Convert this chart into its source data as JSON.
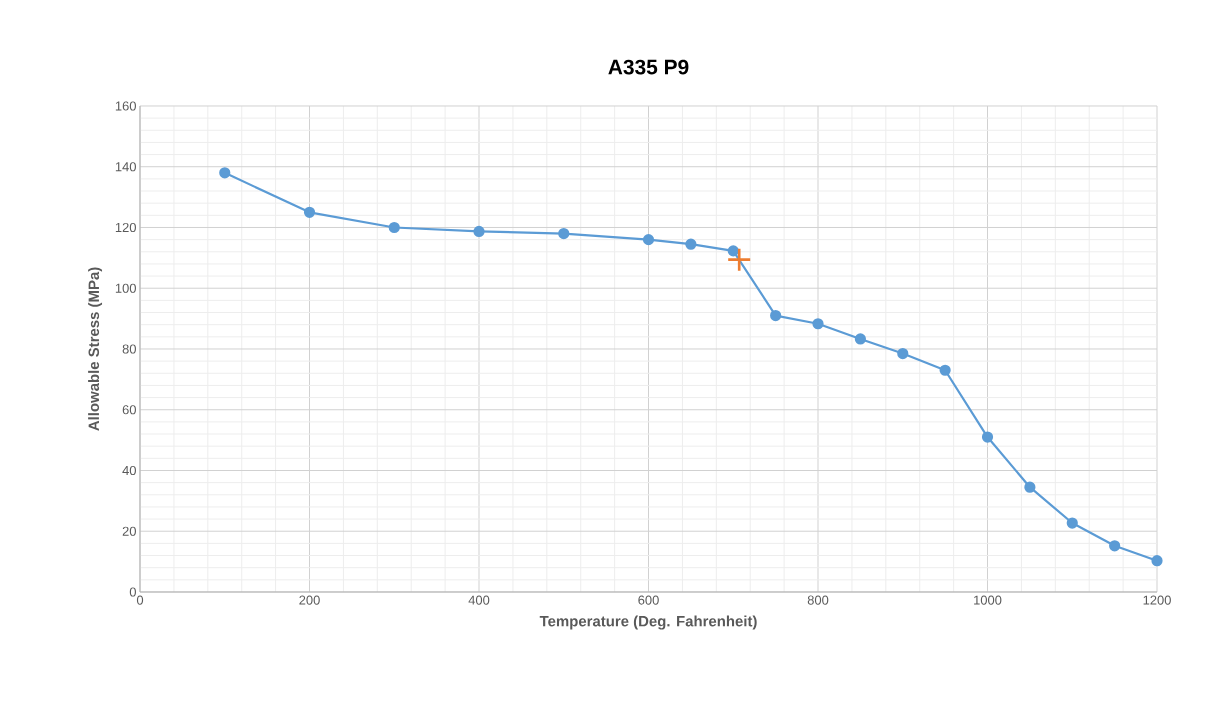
{
  "chart_data": {
    "type": "line",
    "title": "A335 P9",
    "xlabel": "Temperature (Deg. Fahrenheit)",
    "ylabel": "Allowable Stress (MPa)",
    "xlim": [
      0,
      1200
    ],
    "xticks": [
      0,
      200,
      400,
      600,
      800,
      1000,
      1200
    ],
    "ylim": [
      0,
      160
    ],
    "yticks": [
      0,
      20,
      40,
      60,
      80,
      100,
      120,
      140,
      160
    ],
    "grid": true,
    "series": [
      {
        "color": "#5b9bd5",
        "marker": "circle",
        "x": [
          100,
          200,
          300,
          400,
          500,
          600,
          650,
          700,
          750,
          800,
          850,
          900,
          950,
          1000,
          1050,
          1100,
          1150,
          1200
        ],
        "values": [
          138,
          125,
          120,
          118.7,
          118,
          116,
          114.5,
          112.3,
          91,
          88.3,
          83.3,
          78.5,
          73,
          51,
          34.5,
          22.7,
          15.2,
          10.3
        ]
      },
      {
        "type": "scatter",
        "color": "#ed7d31",
        "marker": "cross",
        "x": [
          707
        ],
        "values": [
          109.4
        ]
      }
    ]
  }
}
